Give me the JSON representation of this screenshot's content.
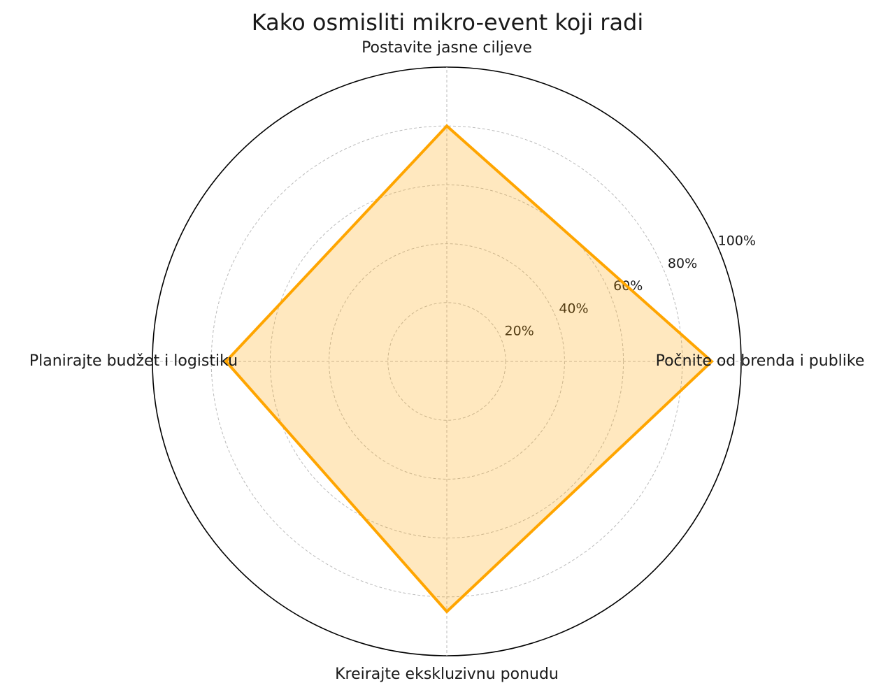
{
  "chart_data": {
    "type": "radar",
    "title": "Kako osmisliti mikro-event koji radi",
    "categories": [
      "Počnite od brenda i publike",
      "Postavite jasne ciljeve",
      "Planirajte budžet i logistiku",
      "Kreirajte ekskluzivnu ponudu"
    ],
    "values": [
      90,
      80,
      75,
      85
    ],
    "color": "#ffa500",
    "ylim": [
      0,
      100
    ],
    "yticks": [
      {
        "value": 20,
        "label": "20%"
      },
      {
        "value": 40,
        "label": "40%"
      },
      {
        "value": 60,
        "label": "60%"
      },
      {
        "value": 80,
        "label": "80%"
      },
      {
        "value": 100,
        "label": "100%"
      }
    ],
    "grid": true
  }
}
